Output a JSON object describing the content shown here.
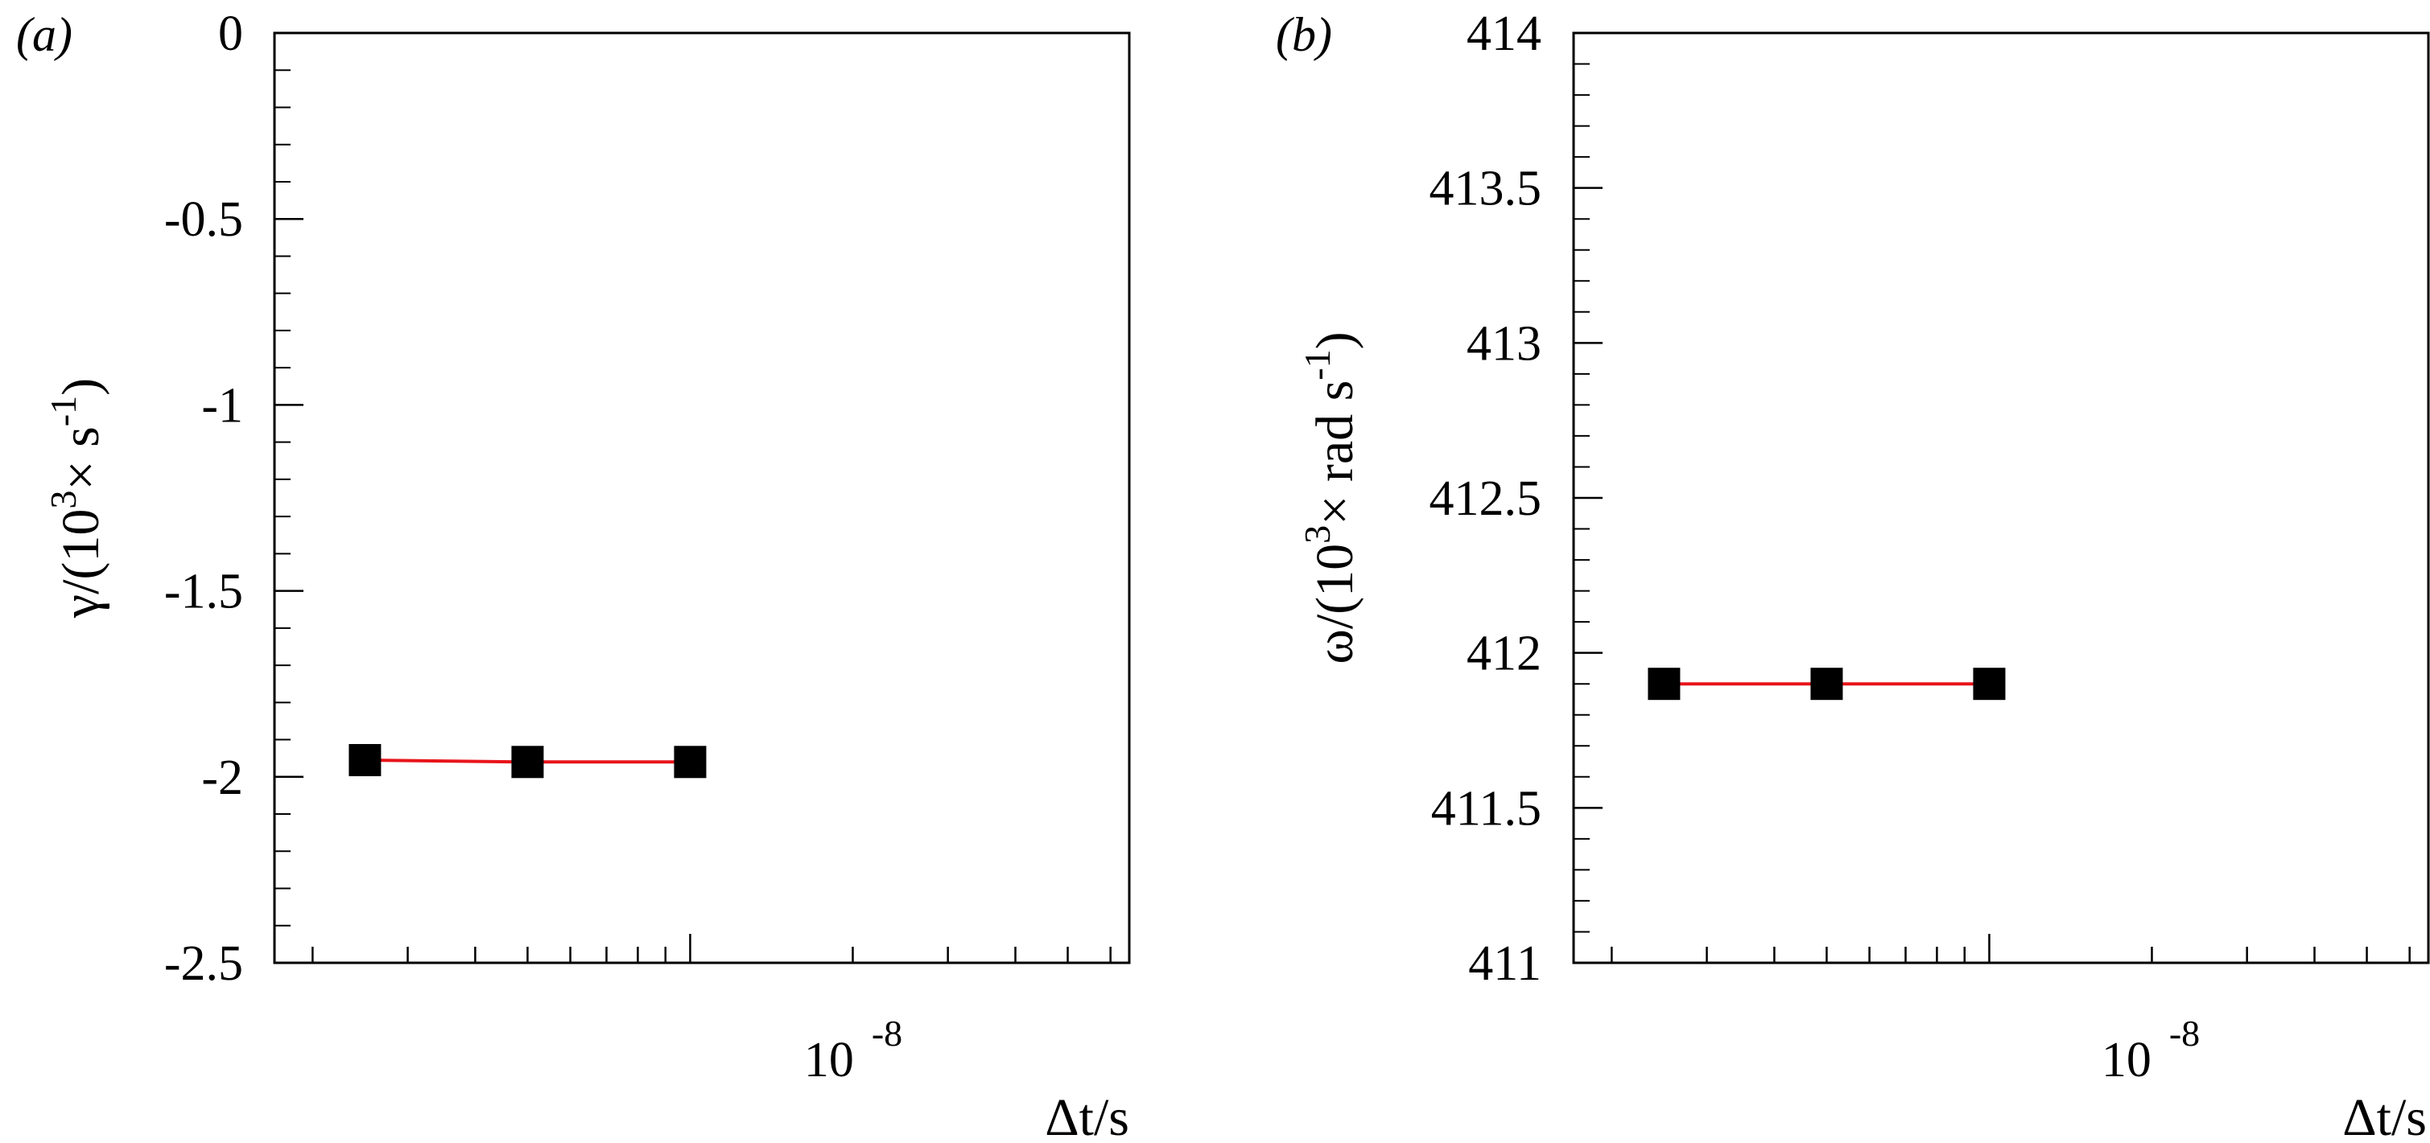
{
  "chart_data": [
    {
      "type": "line",
      "panel_label": "(a)",
      "x_axis": {
        "label": "Δt/s",
        "scale": "log",
        "tick_label_base": "10",
        "tick_label_exponent": "-8",
        "tick_label_value": 1e-08
      },
      "y_axis": {
        "label_prefix": "γ/(10",
        "label_exp1": "3",
        "label_mid": "× s",
        "label_exp2": "-1",
        "label_suffix": ")",
        "range": [
          -2.5,
          0
        ],
        "major_ticks": [
          0,
          -0.5,
          -1,
          -1.5,
          -2,
          -2.5
        ],
        "tick_labels": [
          "0",
          "-0.5",
          "-1",
          "-1.5",
          "-2",
          "-2.5"
        ]
      },
      "series": [
        {
          "line_color": "#e8141b",
          "marker": "square",
          "marker_color": "#000000",
          "points": [
            {
              "x": 2.5e-09,
              "y": -1.955
            },
            {
              "x": 5e-09,
              "y": -1.96
            },
            {
              "x": 1e-08,
              "y": -1.96
            }
          ]
        }
      ]
    },
    {
      "type": "line",
      "panel_label": "(b)",
      "x_axis": {
        "label": "Δt/s",
        "scale": "log",
        "tick_label_base": "10",
        "tick_label_exponent": "-8",
        "tick_label_value": 1e-08
      },
      "y_axis": {
        "label_prefix": "ω/(10",
        "label_exp1": "3",
        "label_mid": "× rad s",
        "label_exp2": "-1",
        "label_suffix": ")",
        "range": [
          411,
          414
        ],
        "major_ticks": [
          414,
          413.5,
          413,
          412.5,
          412,
          411.5,
          411
        ],
        "tick_labels": [
          "414",
          "413.5",
          "413",
          "412.5",
          "412",
          "411.5",
          "411"
        ]
      },
      "series": [
        {
          "line_color": "#e8141b",
          "marker": "square",
          "marker_color": "#000000",
          "points": [
            {
              "x": 2.5e-09,
              "y": 411.9
            },
            {
              "x": 5e-09,
              "y": 411.9
            },
            {
              "x": 1e-08,
              "y": 411.9
            }
          ]
        }
      ]
    }
  ]
}
